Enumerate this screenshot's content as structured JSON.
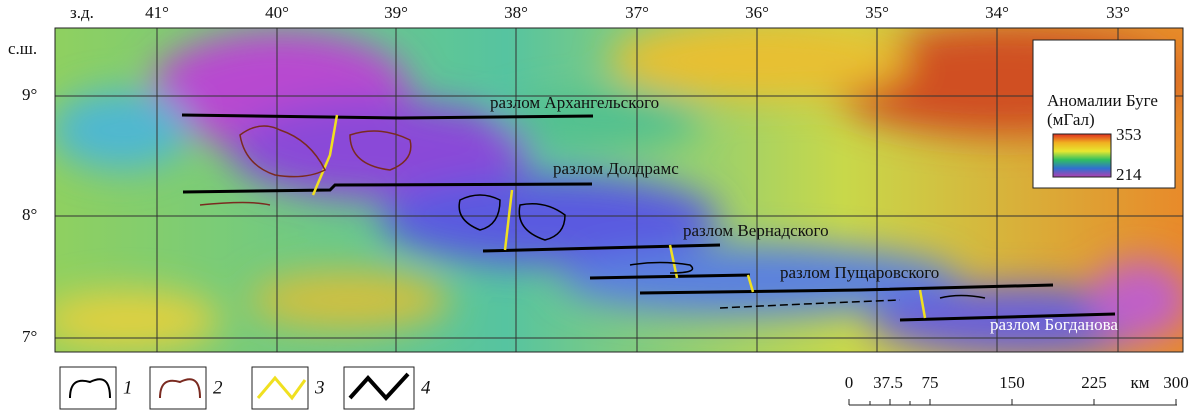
{
  "map": {
    "top_labels": [
      "з.д.",
      "41°",
      "40°",
      "39°",
      "38°",
      "37°",
      "36°",
      "35°",
      "34°",
      "33°"
    ],
    "left_labels": [
      "с.ш.",
      "9°",
      "8°",
      "7°"
    ],
    "faults": [
      "разлом Архангельского",
      "разлом Долдрамс",
      "разлом Вернадского",
      "разлом Пущаровского",
      "разлом Богданова"
    ],
    "legend": {
      "title_1": "Аномалии Буге",
      "title_2": "(мГал)",
      "max": "353",
      "min": "214"
    },
    "key": [
      "1",
      "2",
      "3",
      "4"
    ],
    "scale": {
      "labels": [
        "0",
        "37.5",
        "75",
        "150",
        "225",
        "300"
      ],
      "unit": "км"
    }
  }
}
